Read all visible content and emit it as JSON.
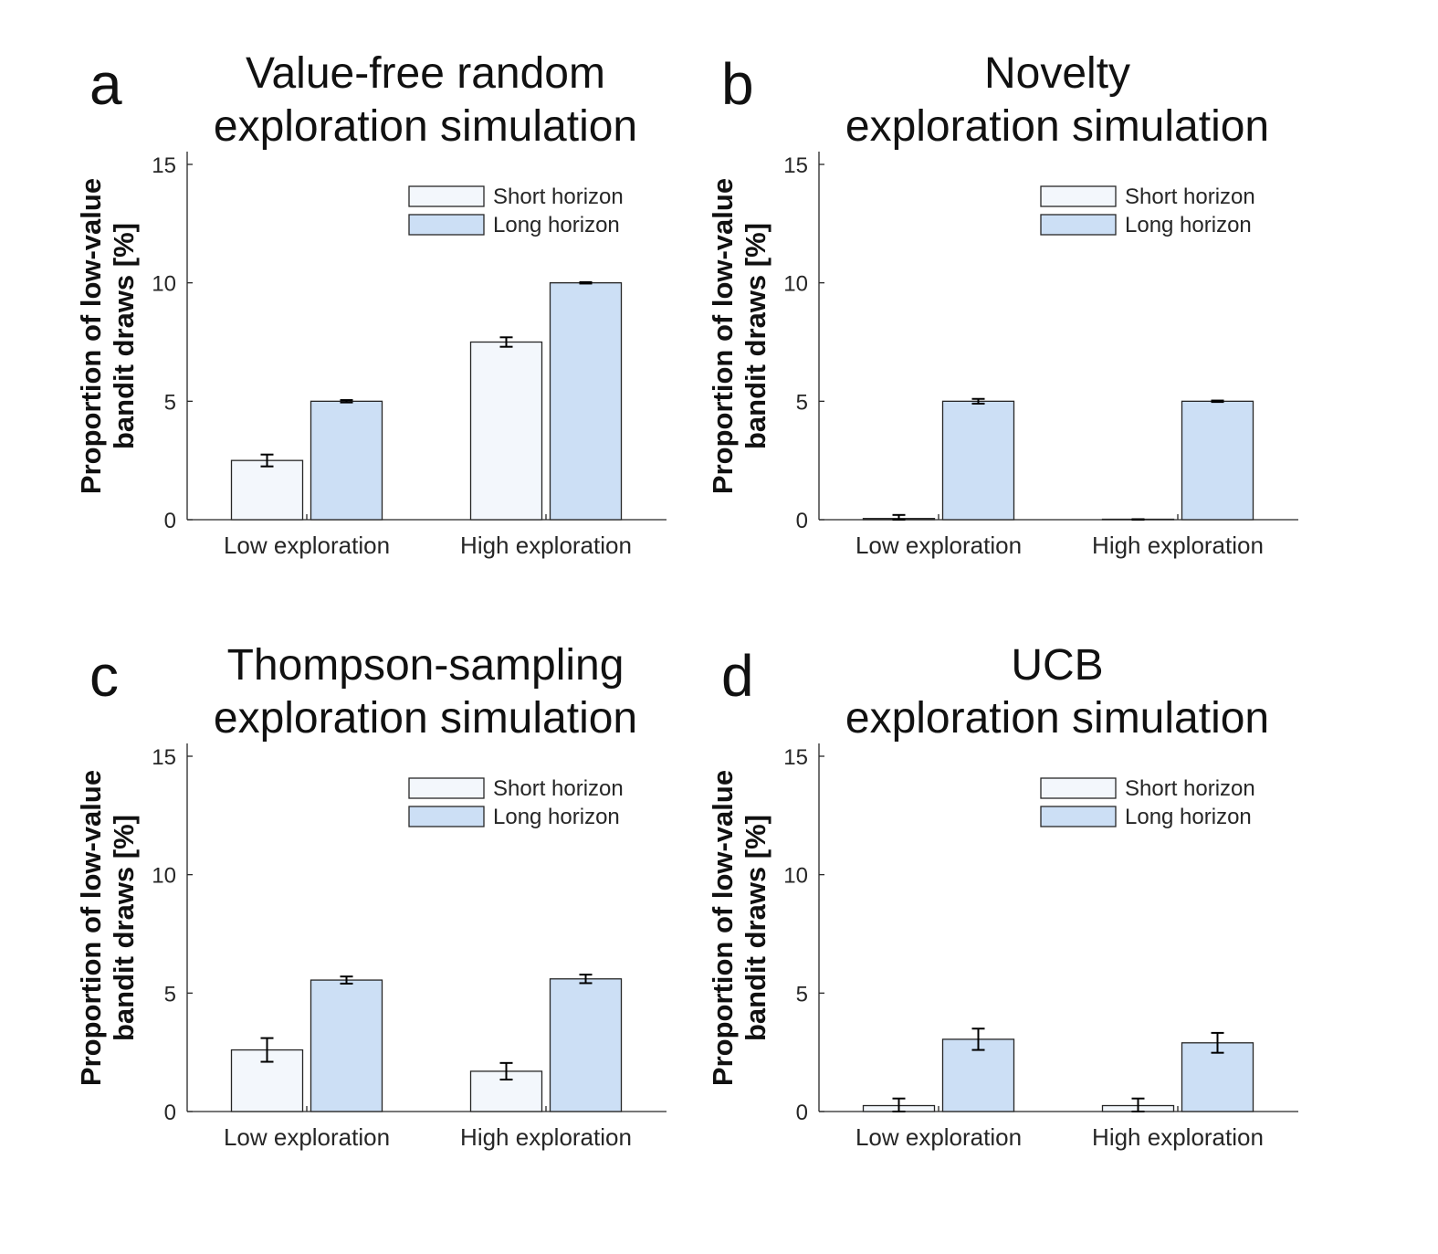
{
  "chart_data": [
    {
      "type": "bar",
      "letter": "a",
      "title": [
        "Value-free random",
        "exploration simulation"
      ],
      "ylabel": [
        "Proportion of low-value",
        "bandit draws [%]"
      ],
      "xlabel": "",
      "categories": [
        "Low exploration",
        "High exploration"
      ],
      "ylim": [
        0,
        15
      ],
      "yticks": [
        0,
        5,
        10,
        15
      ],
      "legend_position": "top-right",
      "series": [
        {
          "name": "Short horizon",
          "color": "#f3f7fc",
          "values": [
            2.5,
            7.5
          ],
          "errors": [
            0.25,
            0.2
          ]
        },
        {
          "name": "Long horizon",
          "color": "#ccdff5",
          "values": [
            5.0,
            10.0
          ],
          "errors": [
            0.05,
            0.03
          ]
        }
      ]
    },
    {
      "type": "bar",
      "letter": "b",
      "title": [
        "Novelty",
        "exploration simulation"
      ],
      "ylabel": [
        "Proportion of low-value",
        "bandit draws [%]"
      ],
      "xlabel": "",
      "categories": [
        "Low exploration",
        "High exploration"
      ],
      "ylim": [
        0,
        15
      ],
      "yticks": [
        0,
        5,
        10,
        15
      ],
      "legend_position": "top-right",
      "series": [
        {
          "name": "Short horizon",
          "color": "#f3f7fc",
          "values": [
            0.05,
            0.0
          ],
          "errors": [
            0.15,
            0.02
          ]
        },
        {
          "name": "Long horizon",
          "color": "#ccdff5",
          "values": [
            5.0,
            5.0
          ],
          "errors": [
            0.1,
            0.03
          ]
        }
      ]
    },
    {
      "type": "bar",
      "letter": "c",
      "title": [
        "Thompson-sampling",
        "exploration simulation"
      ],
      "ylabel": [
        "Proportion of low-value",
        "bandit draws [%]"
      ],
      "xlabel": "",
      "categories": [
        "Low exploration",
        "High exploration"
      ],
      "ylim": [
        0,
        15
      ],
      "yticks": [
        0,
        5,
        10,
        15
      ],
      "legend_position": "top-right",
      "series": [
        {
          "name": "Short horizon",
          "color": "#f3f7fc",
          "values": [
            2.6,
            1.7
          ],
          "errors": [
            0.5,
            0.35
          ]
        },
        {
          "name": "Long horizon",
          "color": "#ccdff5",
          "values": [
            5.55,
            5.6
          ],
          "errors": [
            0.15,
            0.18
          ]
        }
      ]
    },
    {
      "type": "bar",
      "letter": "d",
      "title": [
        "UCB",
        "exploration simulation"
      ],
      "ylabel": [
        "Proportion of low-value",
        "bandit draws [%]"
      ],
      "xlabel": "",
      "categories": [
        "Low exploration",
        "High exploration"
      ],
      "ylim": [
        0,
        15
      ],
      "yticks": [
        0,
        5,
        10,
        15
      ],
      "legend_position": "top-right",
      "series": [
        {
          "name": "Short horizon",
          "color": "#f3f7fc",
          "values": [
            0.25,
            0.25
          ],
          "errors": [
            0.3,
            0.3
          ]
        },
        {
          "name": "Long horizon",
          "color": "#ccdff5",
          "values": [
            3.05,
            2.9
          ],
          "errors": [
            0.45,
            0.42
          ]
        }
      ]
    }
  ]
}
